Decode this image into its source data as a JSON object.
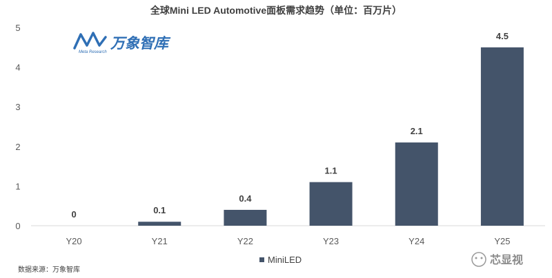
{
  "chart_data": {
    "type": "bar",
    "title": "全球Mini LED Automotive面板需求趋势（单位：百万片）",
    "categories": [
      "Y20",
      "Y21",
      "Y22",
      "Y23",
      "Y24",
      "Y25"
    ],
    "series": [
      {
        "name": "MiniLED",
        "values": [
          0,
          0.1,
          0.4,
          1.1,
          2.1,
          4.5
        ]
      }
    ],
    "data_labels": [
      "0",
      "0.1",
      "0.4",
      "1.1",
      "2.1",
      "4.5"
    ],
    "y_ticks": [
      "0",
      "1",
      "2",
      "3",
      "4",
      "5"
    ],
    "ylim": [
      0,
      5
    ],
    "grid": false,
    "legend": "bottom",
    "bar_color": "#44546a"
  },
  "watermark": {
    "name": "万象智库",
    "sub": "Meta Research"
  },
  "source": "数据来源：万象智库",
  "brand": "芯显视"
}
